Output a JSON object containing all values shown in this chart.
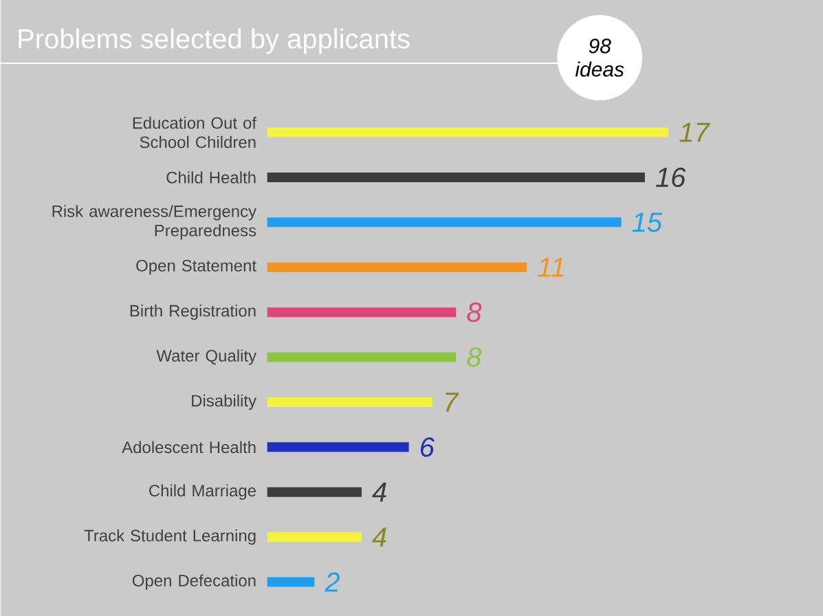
{
  "chart_data": {
    "type": "bar",
    "orientation": "horizontal",
    "title": "Problems selected by applicants",
    "annotations": [
      "98 ideas"
    ],
    "categories": [
      "Education Out of School Children",
      "Child Health",
      "Risk awareness/Emergency Preparedness",
      "Open Statement",
      "Birth Registration",
      "Water Quality",
      "Disability",
      "Adolescent Health",
      "Child Marriage",
      "Track Student Learning",
      "Open Defecation"
    ],
    "values": [
      17,
      16,
      15,
      11,
      8,
      8,
      7,
      6,
      4,
      4,
      2
    ],
    "colors": [
      "#f5f33c",
      "#3c3c3c",
      "#1ea0ee",
      "#f39420",
      "#e0457a",
      "#8cc640",
      "#f5f33c",
      "#1f30c0",
      "#3c3c3c",
      "#f5f33c",
      "#1ea0ee"
    ],
    "data_labels": true
  }
}
